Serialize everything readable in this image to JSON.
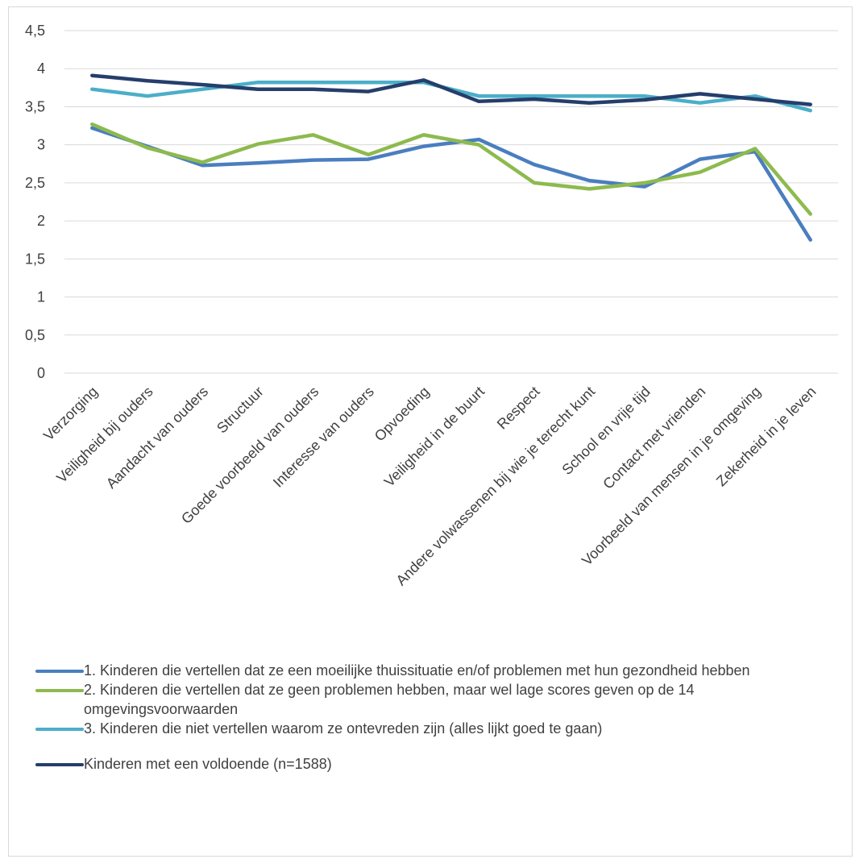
{
  "chart_data": {
    "type": "line",
    "categories": [
      "Verzorging",
      "Veiligheid bij ouders",
      "Aandacht van ouders",
      "Structuur",
      "Goede voorbeeld van ouders",
      "Interesse van ouders",
      "Opvoeding",
      "Veiligheid in de buurt",
      "Respect",
      "Andere volwassenen bij wie je terecht kunt",
      "School en vrije tijd",
      "Contact met vrienden",
      "Voorbeeld van mensen in je omgeving",
      "Zekerheid in je leven"
    ],
    "y_ticks": [
      "0",
      "0,5",
      "1",
      "1,5",
      "2",
      "2,5",
      "3",
      "3,5",
      "4",
      "4,5"
    ],
    "ylim": [
      0,
      4.5
    ],
    "grid": true,
    "legend_position": "bottom",
    "series": [
      {
        "name": "1. Kinderen die vertellen dat ze een moeilijke thuissituatie en/of problemen met hun gezondheid hebben",
        "color": "#4a7ebf",
        "values": [
          3.22,
          2.98,
          2.73,
          2.76,
          2.8,
          2.81,
          2.98,
          3.07,
          2.74,
          2.53,
          2.45,
          2.81,
          2.91,
          1.75
        ]
      },
      {
        "name": "2. Kinderen die vertellen dat ze geen problemen hebben, maar wel lage scores geven op de 14 omgevingsvoorwaarden",
        "color": "#8dba4e",
        "values": [
          3.27,
          2.96,
          2.77,
          3.01,
          3.13,
          2.87,
          3.13,
          3.0,
          2.5,
          2.42,
          2.5,
          2.64,
          2.95,
          2.09
        ]
      },
      {
        "name": "3. Kinderen die niet vertellen waarom ze ontevreden zijn (alles lijkt goed te gaan)",
        "color": "#4baec9",
        "values": [
          3.73,
          3.64,
          3.73,
          3.82,
          3.82,
          3.82,
          3.82,
          3.64,
          3.64,
          3.64,
          3.64,
          3.55,
          3.64,
          3.45
        ]
      },
      {
        "name": "Kinderen met een voldoende (n=1588)",
        "color": "#253e6b",
        "values": [
          3.91,
          3.84,
          3.79,
          3.73,
          3.73,
          3.7,
          3.85,
          3.57,
          3.6,
          3.55,
          3.59,
          3.67,
          3.6,
          3.53
        ]
      }
    ]
  }
}
